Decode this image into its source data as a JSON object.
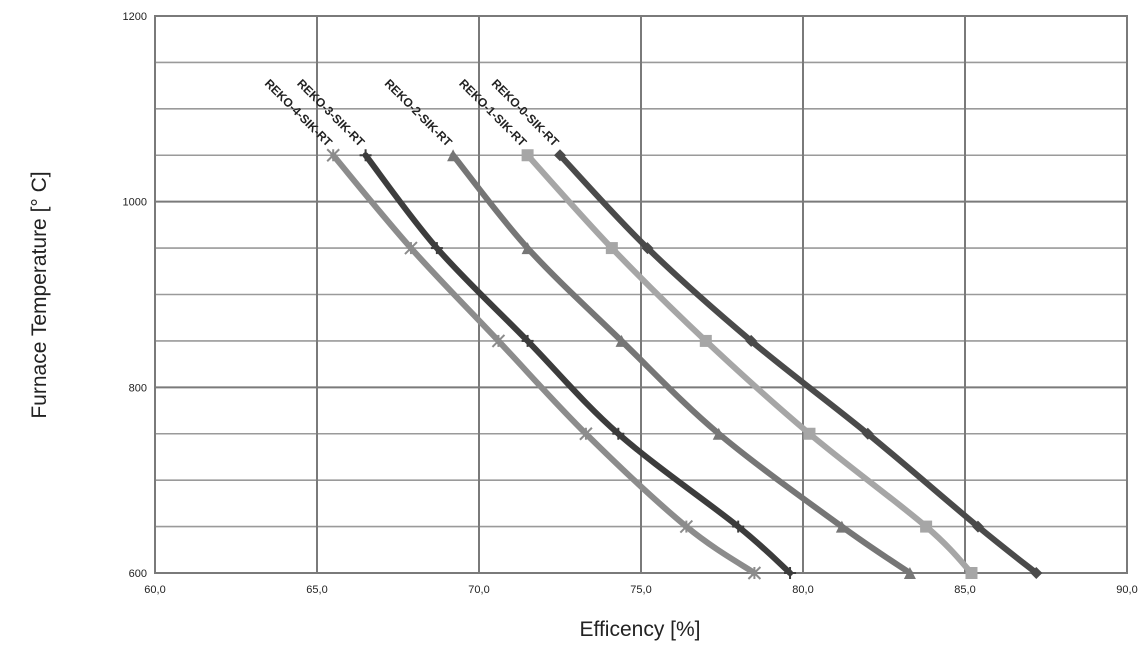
{
  "chart_data": {
    "type": "line",
    "title": "",
    "xlabel": "Efficency [%]",
    "ylabel": "Furnace Temperature [° C]",
    "xlim": [
      60,
      90
    ],
    "ylim": [
      600,
      1200
    ],
    "x_ticks": [
      "60,0",
      "65,0",
      "70,0",
      "75,0",
      "80,0",
      "85,0",
      "90,0"
    ],
    "y_ticks": [
      "600",
      "800",
      "1000",
      "1200"
    ],
    "grid": true,
    "legend": "labels at top of lines",
    "series": [
      {
        "name": "REKO-0-SIK-RT",
        "marker": "diamond",
        "color": "#4a4a4a",
        "points": [
          [
            72.5,
            1050
          ],
          [
            75.2,
            950
          ],
          [
            78.4,
            850
          ],
          [
            82.0,
            750
          ],
          [
            85.4,
            650
          ],
          [
            87.2,
            600
          ]
        ]
      },
      {
        "name": "REKO-1-SIK-RT",
        "marker": "square",
        "color": "#a6a6a6",
        "points": [
          [
            71.5,
            1050
          ],
          [
            74.1,
            950
          ],
          [
            77.0,
            850
          ],
          [
            80.2,
            750
          ],
          [
            83.8,
            650
          ],
          [
            85.2,
            600
          ]
        ]
      },
      {
        "name": "REKO-2-SIK-RT",
        "marker": "triangle",
        "color": "#767676",
        "points": [
          [
            69.2,
            1050
          ],
          [
            71.5,
            950
          ],
          [
            74.4,
            850
          ],
          [
            77.4,
            750
          ],
          [
            81.2,
            650
          ],
          [
            83.3,
            600
          ]
        ]
      },
      {
        "name": "REKO-3-SIK-RT",
        "marker": "plus",
        "color": "#3c3c3c",
        "points": [
          [
            66.5,
            1050
          ],
          [
            68.7,
            950
          ],
          [
            71.5,
            850
          ],
          [
            74.3,
            750
          ],
          [
            78.0,
            650
          ],
          [
            79.6,
            600
          ]
        ]
      },
      {
        "name": "REKO-4-SIK-RT",
        "marker": "asterisk",
        "color": "#8c8c8c",
        "points": [
          [
            65.5,
            1050
          ],
          [
            67.9,
            950
          ],
          [
            70.6,
            850
          ],
          [
            73.3,
            750
          ],
          [
            76.4,
            650
          ],
          [
            78.5,
            600
          ]
        ]
      }
    ]
  }
}
